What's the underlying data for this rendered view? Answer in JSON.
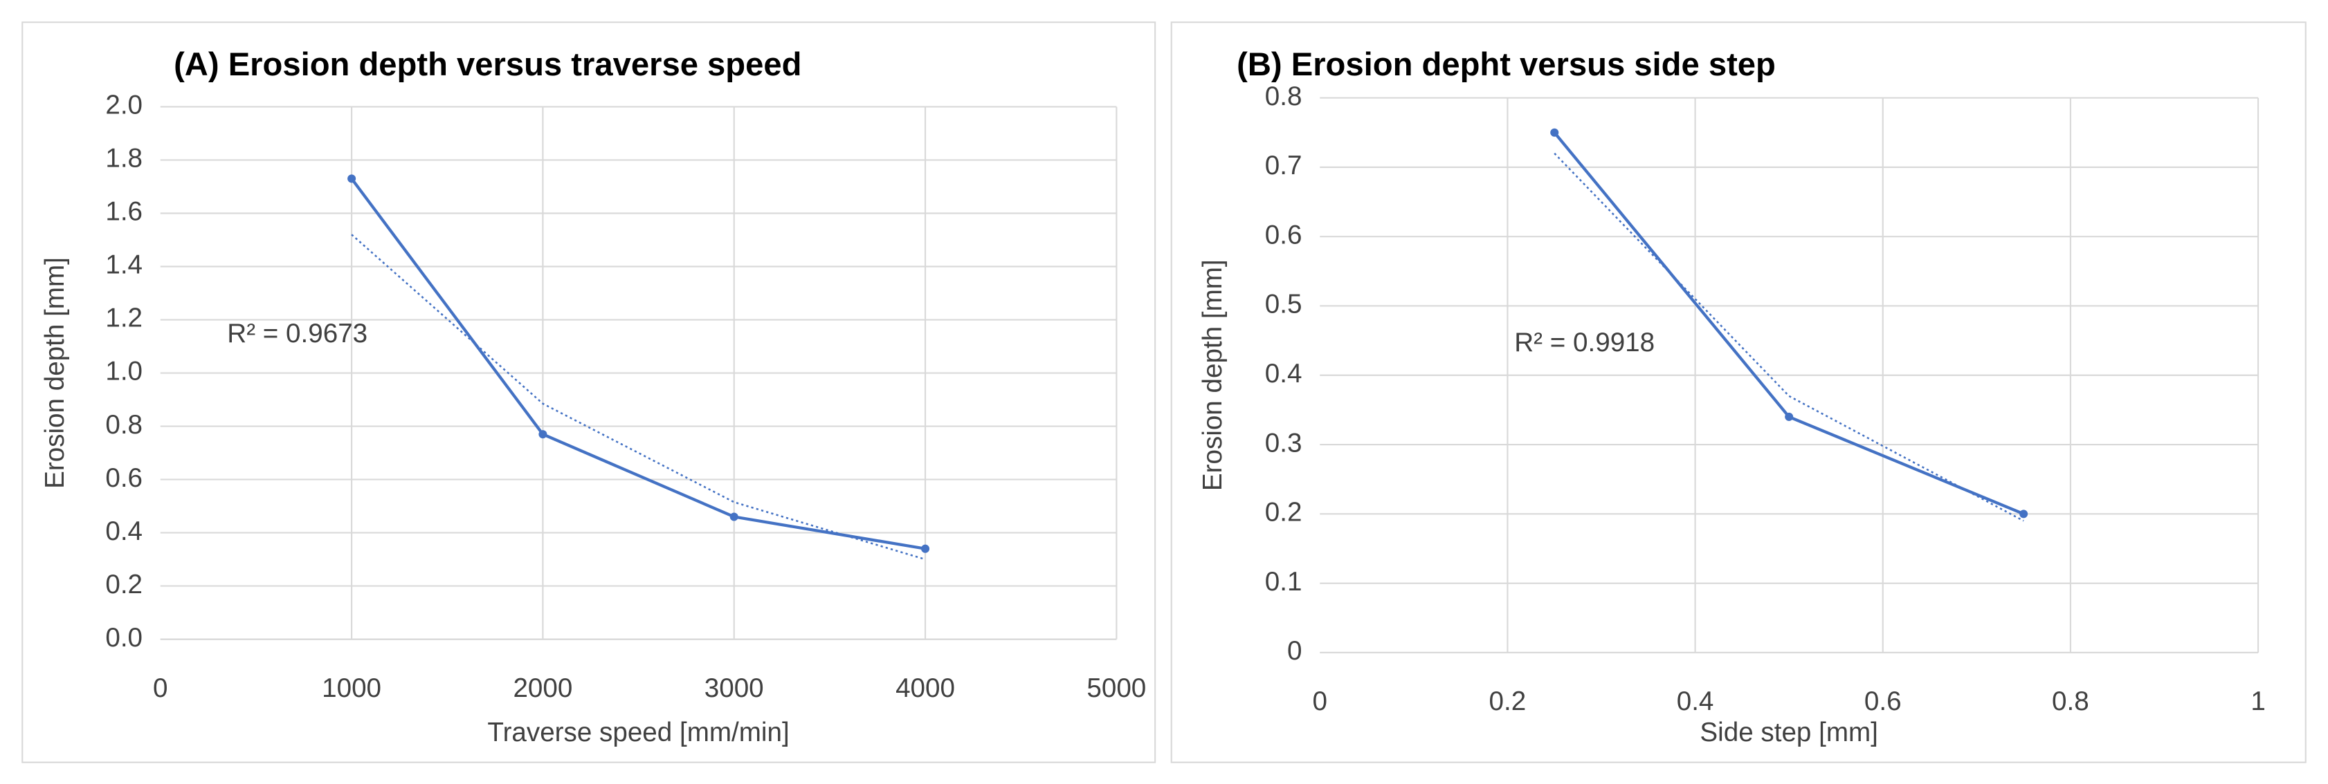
{
  "chart_data": [
    {
      "type": "line",
      "title": "(A) Erosion depth versus traverse speed",
      "x_label": "Traverse speed [mm/min]",
      "y_label": "Erosion depth [mm]",
      "x": [
        1000,
        2000,
        3000,
        4000
      ],
      "values": [
        1.73,
        0.77,
        0.46,
        0.34
      ],
      "color": "#4472c4",
      "trendline": {
        "values": [
          1.52,
          0.885,
          0.515,
          0.3
        ],
        "style": "dotted"
      },
      "annotation": "R² = 0.9673",
      "xlim": [
        0,
        5000
      ],
      "xticks": [
        0,
        1000,
        2000,
        3000,
        4000,
        5000
      ],
      "ylim": [
        0,
        2
      ],
      "yticks": [
        {
          "value": 0,
          "label": "0.0"
        },
        0.2,
        0.4,
        0.6,
        0.8,
        {
          "value": 1,
          "label": "1.0"
        },
        1.2,
        1.4,
        1.6,
        1.8,
        {
          "value": 2,
          "label": "2.0"
        }
      ],
      "grid": true
    },
    {
      "type": "line",
      "title": "(B) Erosion depht versus side step",
      "x_label": "Side step [mm]",
      "y_label": "Erosion depth [mm]",
      "x": [
        0.25,
        0.5,
        0.75
      ],
      "values": [
        0.75,
        0.34,
        0.2
      ],
      "color": "#4472c4",
      "trendline": {
        "values": [
          0.72,
          0.37,
          0.19
        ],
        "style": "dotted"
      },
      "annotation": "R² = 0.9918",
      "xlim": [
        0,
        1
      ],
      "xticks": [
        0,
        0.2,
        0.4,
        0.6,
        0.8,
        1
      ],
      "ylim": [
        0,
        0.8
      ],
      "yticks": [
        0,
        0.1,
        0.2,
        0.3,
        0.4,
        0.5,
        0.6,
        0.7,
        0.8
      ],
      "grid": true
    }
  ]
}
